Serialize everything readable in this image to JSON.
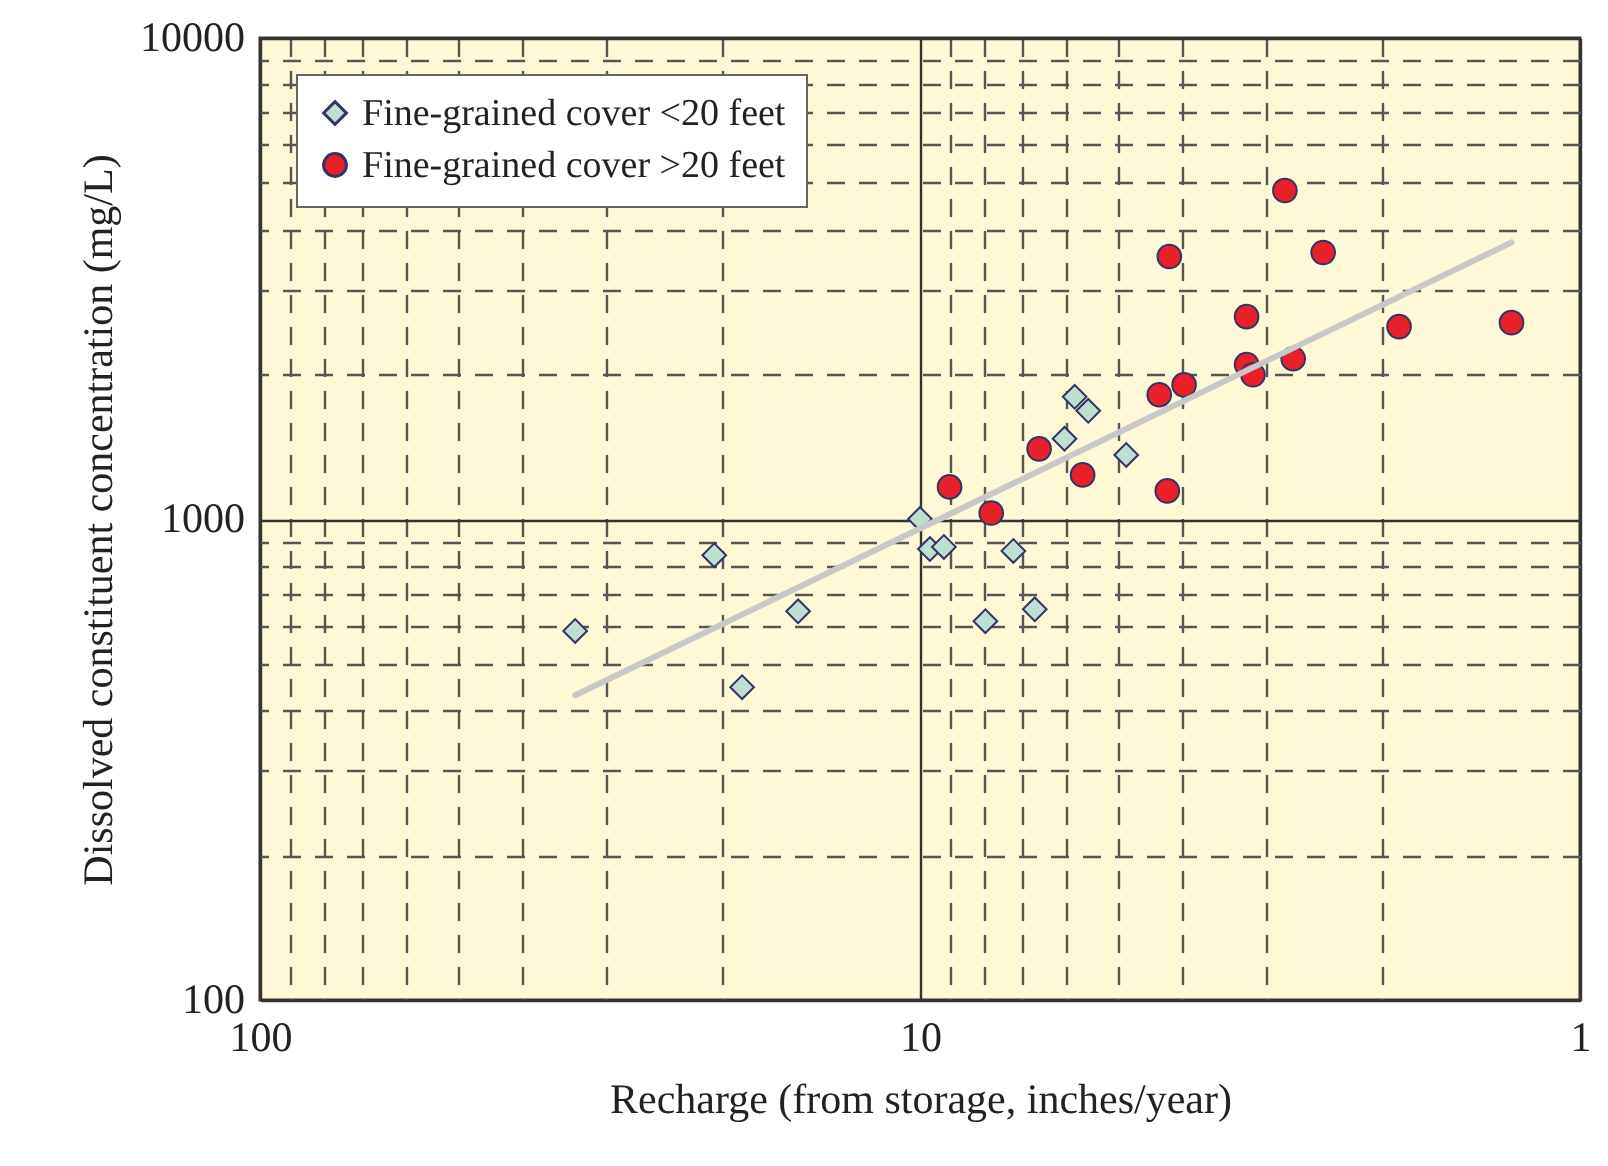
{
  "chart_data": {
    "type": "scatter",
    "xlabel": "Recharge (from storage, inches/year)",
    "ylabel": "Dissolved constituent concentration (mg/L)",
    "log": "xy",
    "grid": true,
    "legend": "top left",
    "xlim": [
      100,
      1
    ],
    "ylim": [
      100,
      10000
    ],
    "xticks": [
      100,
      {
        "value": 90,
        "label": null
      },
      {
        "value": 80,
        "label": null
      },
      {
        "value": 70,
        "label": null
      },
      {
        "value": 60,
        "label": null
      },
      {
        "value": 50,
        "label": null
      },
      {
        "value": 40,
        "label": null
      },
      {
        "value": 30,
        "label": null
      },
      {
        "value": 20,
        "label": null
      },
      10,
      {
        "value": 9,
        "label": null
      },
      {
        "value": 8,
        "label": null
      },
      {
        "value": 7,
        "label": null
      },
      {
        "value": 6,
        "label": null
      },
      {
        "value": 5,
        "label": null
      },
      {
        "value": 4,
        "label": null
      },
      {
        "value": 3,
        "label": null
      },
      {
        "value": 2,
        "label": null
      },
      1
    ],
    "yticks": [
      100,
      {
        "value": 200,
        "label": null
      },
      {
        "value": 300,
        "label": null
      },
      {
        "value": 400,
        "label": null
      },
      {
        "value": 500,
        "label": null
      },
      {
        "value": 600,
        "label": null
      },
      {
        "value": 700,
        "label": null
      },
      {
        "value": 800,
        "label": null
      },
      {
        "value": 900,
        "label": null
      },
      1000,
      {
        "value": 2000,
        "label": null
      },
      {
        "value": 3000,
        "label": null
      },
      {
        "value": 4000,
        "label": null
      },
      {
        "value": 5000,
        "label": null
      },
      {
        "value": 6000,
        "label": null
      },
      {
        "value": 7000,
        "label": null
      },
      {
        "value": 8000,
        "label": null
      },
      {
        "value": 9000,
        "label": null
      },
      10000
    ],
    "series": [
      {
        "name": "Fine-grained cover <20 feet",
        "color": "#bfe0d0",
        "marker": "diamond",
        "x": [
          33.3,
          20.5,
          18.6,
          15.3,
          10,
          9.66,
          9.2,
          7.96,
          7.22,
          6.7,
          6.04,
          5.83,
          5.56,
          4.87
        ],
        "values": [
          585,
          841,
          447,
          643,
          1000,
          866,
          875,
          613,
          858,
          649,
          1468,
          1795,
          1679,
          1359
        ]
      },
      {
        "name": "Fine-grained cover >20 feet",
        "color": "#e8202a",
        "marker": "circle",
        "x": [
          9.02,
          7.8,
          6.6,
          5.67,
          4.34,
          4.22,
          4.19,
          3.98,
          3.2,
          3.2,
          3.13,
          2.8,
          2.72,
          2.45,
          1.88,
          1.27
        ],
        "values": [
          1166,
          1029,
          1399,
          1235,
          1813,
          1144,
          3513,
          1901,
          2634,
          2094,
          1995,
          4819,
          2154,
          3581,
          2512,
          2560
        ]
      },
      {
        "type": "line",
        "color": "#c8c8c8",
        "line_style": "solid",
        "x": [
          33.3,
          1.27
        ],
        "values": [
          430,
          3758
        ]
      }
    ]
  }
}
